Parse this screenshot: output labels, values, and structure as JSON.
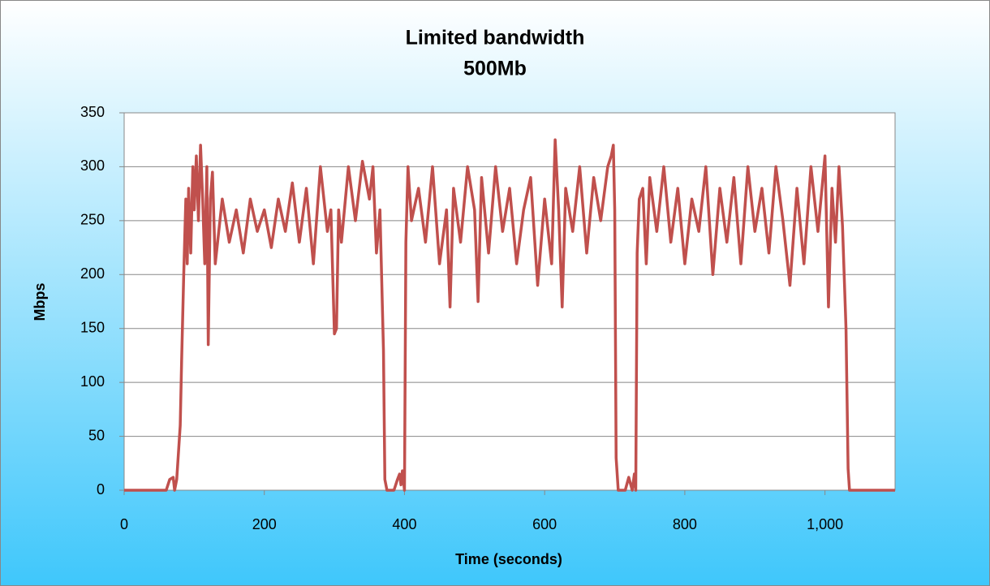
{
  "chart_data": {
    "type": "line",
    "title": "Limited bandwidth",
    "subtitle": "500Mb",
    "x_label": "Time (seconds)",
    "y_label": "Mbps",
    "xlim": [
      0,
      1100
    ],
    "xticks": [
      0,
      200,
      400,
      600,
      800,
      {
        "value": 1000,
        "label": "1,000"
      }
    ],
    "ylim": [
      0,
      350
    ],
    "yticks": [
      0,
      50,
      100,
      150,
      200,
      250,
      300,
      350
    ],
    "grid": true,
    "x": [
      0,
      60,
      65,
      70,
      72,
      75,
      78,
      80,
      82,
      85,
      88,
      90,
      92,
      95,
      98,
      100,
      103,
      106,
      109,
      112,
      115,
      118,
      120,
      123,
      126,
      130,
      140,
      150,
      160,
      170,
      180,
      190,
      200,
      210,
      220,
      230,
      240,
      250,
      260,
      270,
      280,
      290,
      295,
      300,
      303,
      306,
      310,
      320,
      330,
      340,
      350,
      355,
      360,
      365,
      370,
      372,
      375,
      385,
      390,
      393,
      395,
      397,
      400,
      402,
      405,
      410,
      420,
      430,
      440,
      450,
      460,
      465,
      470,
      480,
      490,
      500,
      505,
      510,
      520,
      530,
      540,
      550,
      560,
      570,
      580,
      590,
      600,
      610,
      615,
      620,
      625,
      630,
      640,
      650,
      660,
      670,
      680,
      690,
      695,
      698,
      700,
      702,
      705,
      715,
      720,
      725,
      728,
      730,
      732,
      735,
      740,
      745,
      750,
      760,
      770,
      780,
      790,
      800,
      810,
      820,
      830,
      840,
      850,
      860,
      870,
      880,
      890,
      900,
      910,
      920,
      930,
      940,
      950,
      960,
      970,
      980,
      990,
      1000,
      1005,
      1010,
      1015,
      1020,
      1025,
      1030,
      1033,
      1035,
      1100
    ],
    "series": [
      {
        "color": "#c0504d",
        "values": [
          0,
          0,
          10,
          12,
          0,
          10,
          40,
          60,
          120,
          200,
          270,
          210,
          280,
          220,
          300,
          260,
          310,
          250,
          320,
          270,
          210,
          300,
          135,
          270,
          295,
          210,
          270,
          230,
          260,
          220,
          270,
          240,
          260,
          225,
          270,
          240,
          285,
          230,
          280,
          210,
          300,
          240,
          260,
          145,
          150,
          260,
          230,
          300,
          250,
          305,
          270,
          300,
          220,
          260,
          130,
          10,
          0,
          0,
          10,
          15,
          5,
          18,
          0,
          230,
          300,
          250,
          280,
          230,
          300,
          210,
          260,
          170,
          280,
          230,
          300,
          260,
          175,
          290,
          220,
          300,
          240,
          280,
          210,
          260,
          290,
          190,
          270,
          210,
          325,
          260,
          170,
          280,
          240,
          300,
          220,
          290,
          250,
          300,
          310,
          320,
          260,
          30,
          0,
          0,
          12,
          0,
          15,
          0,
          220,
          270,
          280,
          210,
          290,
          240,
          300,
          230,
          280,
          210,
          270,
          240,
          300,
          200,
          280,
          230,
          290,
          210,
          300,
          240,
          280,
          220,
          300,
          250,
          190,
          280,
          210,
          300,
          240,
          310,
          170,
          280,
          230,
          300,
          245,
          150,
          20,
          0,
          0
        ]
      }
    ]
  }
}
